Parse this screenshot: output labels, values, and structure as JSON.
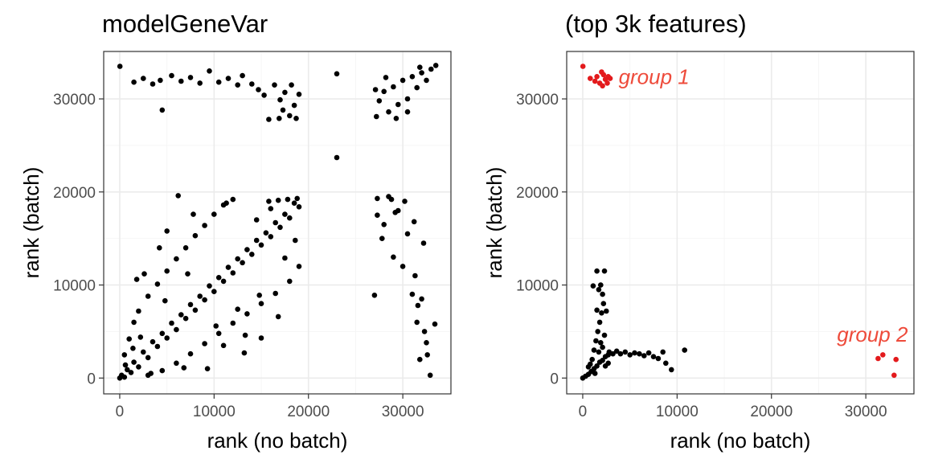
{
  "chart_data": [
    {
      "type": "scatter",
      "title": "modelGeneVar",
      "xlabel": "rank (no batch)",
      "ylabel": "rank (batch)",
      "xlim": [
        -1700,
        35100
      ],
      "ylim": [
        -1700,
        35100
      ],
      "x_ticks": [
        0,
        10000,
        20000,
        30000
      ],
      "y_ticks": [
        0,
        10000,
        20000,
        30000
      ],
      "x_tick_labels": [
        "0",
        "10000",
        "20000",
        "30000"
      ],
      "y_tick_labels": [
        "0",
        "10000",
        "20000",
        "30000"
      ],
      "grid": true,
      "point_color": "#000000",
      "series": [
        {
          "points": [
            [
              0,
              0
            ],
            [
              200,
              300
            ],
            [
              500,
              100
            ],
            [
              800,
              900
            ],
            [
              1200,
              600
            ],
            [
              1500,
              1700
            ],
            [
              2000,
              1200
            ],
            [
              2500,
              2800
            ],
            [
              3000,
              2200
            ],
            [
              3500,
              3900
            ],
            [
              4000,
              3400
            ],
            [
              4500,
              4800
            ],
            [
              5000,
              4300
            ],
            [
              5500,
              5900
            ],
            [
              6000,
              5200
            ],
            [
              6500,
              6800
            ],
            [
              7000,
              6400
            ],
            [
              7500,
              7900
            ],
            [
              8000,
              7300
            ],
            [
              8500,
              8800
            ],
            [
              9000,
              8400
            ],
            [
              9500,
              9900
            ],
            [
              10000,
              9300
            ],
            [
              10500,
              10800
            ],
            [
              11000,
              10400
            ],
            [
              11500,
              11900
            ],
            [
              12000,
              11300
            ],
            [
              12500,
              12800
            ],
            [
              13000,
              12400
            ],
            [
              13500,
              13800
            ],
            [
              14000,
              13300
            ],
            [
              14500,
              14800
            ],
            [
              15000,
              14300
            ],
            [
              15500,
              15600
            ],
            [
              16000,
              15200
            ],
            [
              16500,
              16700
            ],
            [
              17000,
              16200
            ],
            [
              17500,
              17600
            ],
            [
              18000,
              17200
            ],
            [
              18500,
              18800
            ],
            [
              19000,
              18400
            ],
            [
              18800,
              19300
            ],
            [
              17800,
              19200
            ],
            [
              16800,
              19100
            ],
            [
              15800,
              19000
            ],
            [
              3000,
              300
            ],
            [
              4500,
              800
            ],
            [
              6000,
              1600
            ],
            [
              7500,
              2600
            ],
            [
              9000,
              3700
            ],
            [
              10500,
              4800
            ],
            [
              12000,
              5900
            ],
            [
              13500,
              6900
            ],
            [
              15000,
              8000
            ],
            [
              16500,
              9100
            ],
            [
              18000,
              10400
            ],
            [
              19000,
              12000
            ],
            [
              500,
              2500
            ],
            [
              1000,
              4200
            ],
            [
              1500,
              6000
            ],
            [
              2000,
              7200
            ],
            [
              3000,
              8800
            ],
            [
              4000,
              10100
            ],
            [
              5000,
              11500
            ],
            [
              6000,
              12800
            ],
            [
              7000,
              14000
            ],
            [
              8000,
              15300
            ],
            [
              9000,
              16400
            ],
            [
              10000,
              17600
            ],
            [
              11000,
              18600
            ],
            [
              12000,
              19200
            ],
            [
              6200,
              19600
            ],
            [
              11300,
              18800
            ],
            [
              2600,
              11200
            ],
            [
              4200,
              14000
            ],
            [
              9300,
              1000
            ],
            [
              13200,
              2700
            ],
            [
              15000,
              4300
            ],
            [
              16800,
              6600
            ],
            [
              14800,
              8900
            ],
            [
              12500,
              7400
            ],
            [
              11000,
              3500
            ],
            [
              13300,
              4600
            ],
            [
              1800,
              10600
            ],
            [
              5000,
              15800
            ],
            [
              7800,
              17600
            ],
            [
              3300,
              500
            ],
            [
              6800,
              1100
            ],
            [
              10200,
              5600
            ],
            [
              17500,
              12900
            ],
            [
              18600,
              14800
            ],
            [
              4800,
              8300
            ],
            [
              7200,
              11200
            ],
            [
              2200,
              4400
            ],
            [
              14500,
              17000
            ],
            [
              16000,
              18200
            ],
            [
              600,
              1400
            ],
            [
              1400,
              3200
            ],
            [
              20,
              33500
            ],
            [
              1500,
              31800
            ],
            [
              2500,
              32200
            ],
            [
              3500,
              31600
            ],
            [
              4300,
              32000
            ],
            [
              4500,
              28800
            ],
            [
              5500,
              32500
            ],
            [
              6500,
              31900
            ],
            [
              7500,
              32300
            ],
            [
              8500,
              31700
            ],
            [
              9500,
              33000
            ],
            [
              10500,
              31800
            ],
            [
              11500,
              32200
            ],
            [
              12500,
              31500
            ],
            [
              13000,
              32500
            ],
            [
              14000,
              31600
            ],
            [
              14700,
              31000
            ],
            [
              15300,
              30400
            ],
            [
              15800,
              27800
            ],
            [
              16400,
              31500
            ],
            [
              17000,
              29900
            ],
            [
              17500,
              30700
            ],
            [
              18000,
              28200
            ],
            [
              18500,
              29300
            ],
            [
              19000,
              30500
            ],
            [
              18200,
              31500
            ],
            [
              17300,
              28800
            ],
            [
              16900,
              27900
            ],
            [
              18700,
              27900
            ],
            [
              23000,
              32700
            ],
            [
              23000,
              23700
            ],
            [
              27200,
              28100
            ],
            [
              27500,
              29800
            ],
            [
              28000,
              30800
            ],
            [
              28500,
              28600
            ],
            [
              29000,
              31300
            ],
            [
              29500,
              29400
            ],
            [
              30000,
              32000
            ],
            [
              30500,
              30000
            ],
            [
              31000,
              32400
            ],
            [
              31500,
              31200
            ],
            [
              32000,
              32800
            ],
            [
              32500,
              32000
            ],
            [
              33000,
              33200
            ],
            [
              33500,
              33600
            ],
            [
              29300,
              27900
            ],
            [
              30500,
              28600
            ],
            [
              28200,
              32300
            ],
            [
              27100,
              31000
            ],
            [
              31800,
              33400
            ],
            [
              27300,
              19300
            ],
            [
              27300,
              17500
            ],
            [
              27800,
              15000
            ],
            [
              28000,
              16500
            ],
            [
              28500,
              19500
            ],
            [
              29000,
              13000
            ],
            [
              29500,
              18000
            ],
            [
              30000,
              12000
            ],
            [
              30500,
              15500
            ],
            [
              31000,
              9000
            ],
            [
              31300,
              11000
            ],
            [
              31600,
              7800
            ],
            [
              32000,
              8500
            ],
            [
              31500,
              6000
            ],
            [
              32300,
              5000
            ],
            [
              32500,
              3800
            ],
            [
              31800,
              2000
            ],
            [
              32900,
              300
            ],
            [
              33400,
              5800
            ],
            [
              32600,
              2500
            ],
            [
              27000,
              8900
            ],
            [
              30200,
              19000
            ],
            [
              29200,
              17800
            ],
            [
              28800,
              19200
            ],
            [
              32200,
              14500
            ],
            [
              31200,
              16800
            ]
          ]
        }
      ]
    },
    {
      "type": "scatter",
      "title": "(top 3k features)",
      "xlabel": "rank (no batch)",
      "ylabel": "rank (batch)",
      "xlim": [
        -1700,
        35100
      ],
      "ylim": [
        -1700,
        35100
      ],
      "x_ticks": [
        0,
        10000,
        20000,
        30000
      ],
      "y_ticks": [
        0,
        10000,
        20000,
        30000
      ],
      "x_tick_labels": [
        "0",
        "10000",
        "20000",
        "30000"
      ],
      "y_tick_labels": [
        "0",
        "10000",
        "20000",
        "30000"
      ],
      "grid": true,
      "annotations": [
        {
          "text": "group 1",
          "x": 3800,
          "y": 32400,
          "anchor": "start",
          "color": "#ee4b3b"
        },
        {
          "text": "group 2",
          "x": 30700,
          "y": 4700,
          "anchor": "middle",
          "color": "#ee4b3b"
        }
      ],
      "series": [
        {
          "color": "#000000",
          "points": [
            [
              0,
              0
            ],
            [
              300,
              200
            ],
            [
              600,
              400
            ],
            [
              900,
              700
            ],
            [
              1200,
              1000
            ],
            [
              1500,
              1300
            ],
            [
              1800,
              1700
            ],
            [
              2100,
              1900
            ],
            [
              2400,
              2300
            ],
            [
              2700,
              2500
            ],
            [
              1000,
              2000
            ],
            [
              1200,
              3000
            ],
            [
              1400,
              4000
            ],
            [
              1600,
              5000
            ],
            [
              1800,
              6000
            ],
            [
              2000,
              7000
            ],
            [
              2200,
              8000
            ],
            [
              2100,
              9000
            ],
            [
              1900,
              10000
            ],
            [
              1500,
              11500
            ],
            [
              2300,
              11500
            ],
            [
              1700,
              9500
            ],
            [
              2500,
              7200
            ],
            [
              2800,
              2800
            ],
            [
              3200,
              2600
            ],
            [
              3600,
              2900
            ],
            [
              4000,
              2600
            ],
            [
              4500,
              2800
            ],
            [
              5000,
              2500
            ],
            [
              5500,
              2700
            ],
            [
              6000,
              2600
            ],
            [
              6500,
              2400
            ],
            [
              7000,
              2700
            ],
            [
              7500,
              2300
            ],
            [
              8000,
              2100
            ],
            [
              8500,
              2800
            ],
            [
              9400,
              900
            ],
            [
              10800,
              3000
            ],
            [
              8800,
              1600
            ],
            [
              800,
              1500
            ],
            [
              1300,
              500
            ],
            [
              1700,
              2800
            ],
            [
              2100,
              3300
            ],
            [
              2400,
              1300
            ],
            [
              600,
              1200
            ],
            [
              1900,
              3800
            ],
            [
              2300,
              4600
            ],
            [
              1100,
              9900
            ],
            [
              1500,
              7300
            ],
            [
              2700,
              1600
            ]
          ]
        },
        {
          "color": "#e31a1c",
          "points": [
            [
              20,
              33500
            ],
            [
              800,
              32200
            ],
            [
              1300,
              31900
            ],
            [
              1500,
              32400
            ],
            [
              1800,
              31700
            ],
            [
              2000,
              32900
            ],
            [
              2100,
              31400
            ],
            [
              2200,
              32600
            ],
            [
              2400,
              32100
            ],
            [
              2600,
              31700
            ],
            [
              2700,
              32400
            ],
            [
              2900,
              32200
            ],
            [
              31300,
              2100
            ],
            [
              31800,
              2500
            ],
            [
              33200,
              2000
            ],
            [
              33000,
              300
            ]
          ]
        }
      ]
    }
  ]
}
